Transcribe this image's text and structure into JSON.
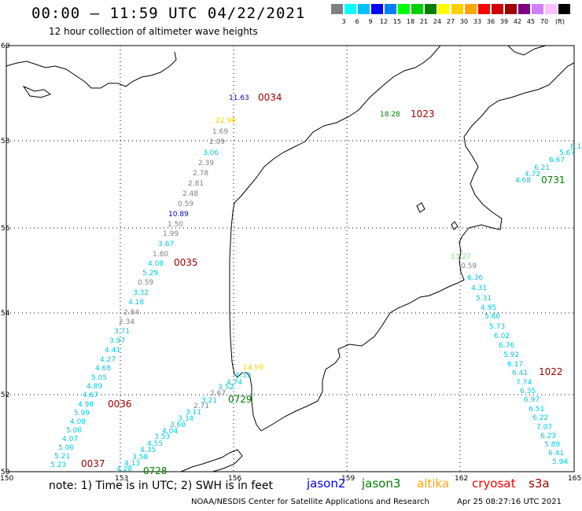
{
  "title": "00:00 – 11:59 UTC 04/22/2021",
  "subtitle": "12 hour collection of altimeter wave heights",
  "scale": {
    "colors": [
      "#808080",
      "#00ffff",
      "#00bfff",
      "#0000ff",
      "#0080ff",
      "#00ff00",
      "#00d000",
      "#008000",
      "#ffff00",
      "#ffd000",
      "#ffa500",
      "#ff0000",
      "#d00000",
      "#a00000",
      "#800080",
      "#d080ff",
      "#ffc0ff",
      "#000000"
    ],
    "labels": [
      "3",
      "6",
      "9",
      "12",
      "15",
      "18",
      "21",
      "24",
      "27",
      "30",
      "33",
      "36",
      "39",
      "42",
      "45",
      "70",
      "(ft)"
    ]
  },
  "axes": {
    "x_ticks": [
      "150",
      "153",
      "156",
      "159",
      "162",
      "165"
    ],
    "y_ticks": [
      "60",
      "58",
      "56",
      "54",
      "52",
      "50"
    ]
  },
  "passes": [
    "0034",
    "1023",
    "0035",
    "0036",
    "0037",
    "0728",
    "0729",
    "0731",
    "1022"
  ],
  "points": [
    {
      "v": "11.63",
      "c": "#0000c0"
    },
    {
      "v": "18.28",
      "c": "#008000"
    },
    {
      "v": "22.90",
      "c": "#ffd000"
    },
    {
      "v": "1.69",
      "c": "#808080"
    },
    {
      "v": "2.09",
      "c": "#808080"
    },
    {
      "v": "3.06",
      "c": "#00c8e0"
    },
    {
      "v": "2.39",
      "c": "#808080"
    },
    {
      "v": "2.78",
      "c": "#808080"
    },
    {
      "v": "2.81",
      "c": "#808080"
    },
    {
      "v": "2.48",
      "c": "#808080"
    },
    {
      "v": "0.59",
      "c": "#808080"
    },
    {
      "v": "10.89",
      "c": "#0000c0"
    },
    {
      "v": "1.50",
      "c": "#808080"
    },
    {
      "v": "1.99",
      "c": "#808080"
    },
    {
      "v": "3.67",
      "c": "#00c8e0"
    },
    {
      "v": "1.80",
      "c": "#808080"
    },
    {
      "v": "4.08",
      "c": "#00c8e0"
    },
    {
      "v": "5.29",
      "c": "#00c8e0"
    },
    {
      "v": "0.59",
      "c": "#808080"
    },
    {
      "v": "3.32",
      "c": "#00c8e0"
    },
    {
      "v": "4.10",
      "c": "#00c8e0"
    },
    {
      "v": "2.84",
      "c": "#808080"
    },
    {
      "v": "2.34",
      "c": "#808080"
    },
    {
      "v": "3.71",
      "c": "#00c8e0"
    },
    {
      "v": "3.97",
      "c": "#00c8e0"
    },
    {
      "v": "4.41",
      "c": "#00c8e0"
    },
    {
      "v": "4.27",
      "c": "#00c8e0"
    },
    {
      "v": "4.68",
      "c": "#00c8e0"
    },
    {
      "v": "5.05",
      "c": "#00c8e0"
    },
    {
      "v": "4.89",
      "c": "#00c8e0"
    },
    {
      "v": "4.67",
      "c": "#00c8e0"
    },
    {
      "v": "4.98",
      "c": "#00c8e0"
    },
    {
      "v": "5.99",
      "c": "#00c8e0"
    },
    {
      "v": "4.08",
      "c": "#00c8e0"
    },
    {
      "v": "5.00",
      "c": "#00c8e0"
    },
    {
      "v": "4.07",
      "c": "#00c8e0"
    },
    {
      "v": "5.00",
      "c": "#00c8e0"
    },
    {
      "v": "5.21",
      "c": "#00c8e0"
    },
    {
      "v": "5.23",
      "c": "#00c8e0"
    },
    {
      "v": "14.98",
      "c": "#ffd000"
    },
    {
      "v": "4.39",
      "c": "#00c8e0"
    },
    {
      "v": "4.74",
      "c": "#00c8e0"
    },
    {
      "v": "3.52",
      "c": "#00c8e0"
    },
    {
      "v": "2.67",
      "c": "#808080"
    },
    {
      "v": "3.21",
      "c": "#00c8e0"
    },
    {
      "v": "2.71",
      "c": "#808080"
    },
    {
      "v": "3.11",
      "c": "#00c8e0"
    },
    {
      "v": "3.34",
      "c": "#00c8e0"
    },
    {
      "v": "3.60",
      "c": "#00c8e0"
    },
    {
      "v": "4.04",
      "c": "#00c8e0"
    },
    {
      "v": "3.53",
      "c": "#00c8e0"
    },
    {
      "v": "4.55",
      "c": "#00c8e0"
    },
    {
      "v": "4.35",
      "c": "#00c8e0"
    },
    {
      "v": "3.58",
      "c": "#00c8e0"
    },
    {
      "v": "4.13",
      "c": "#00c8e0"
    },
    {
      "v": "4.28",
      "c": "#00c8e0"
    },
    {
      "v": "13.27",
      "c": "#80e080"
    },
    {
      "v": "0.59",
      "c": "#808080"
    },
    {
      "v": "6.36",
      "c": "#00c8e0"
    },
    {
      "v": "4.31",
      "c": "#00c8e0"
    },
    {
      "v": "5.31",
      "c": "#00c8e0"
    },
    {
      "v": "4.95",
      "c": "#00c8e0"
    },
    {
      "v": "5.60",
      "c": "#00c8e0"
    },
    {
      "v": "5.73",
      "c": "#00c8e0"
    },
    {
      "v": "6.02",
      "c": "#00c8e0"
    },
    {
      "v": "6.76",
      "c": "#00c8e0"
    },
    {
      "v": "5.92",
      "c": "#00c8e0"
    },
    {
      "v": "6.17",
      "c": "#00c8e0"
    },
    {
      "v": "6.41",
      "c": "#00c8e0"
    },
    {
      "v": "7.74",
      "c": "#00c8e0"
    },
    {
      "v": "6.35",
      "c": "#00c8e0"
    },
    {
      "v": "6.97",
      "c": "#00c8e0"
    },
    {
      "v": "6.51",
      "c": "#00c8e0"
    },
    {
      "v": "6.22",
      "c": "#00c8e0"
    },
    {
      "v": "7.07",
      "c": "#00c8e0"
    },
    {
      "v": "6.23",
      "c": "#00c8e0"
    },
    {
      "v": "5.89",
      "c": "#00c8e0"
    },
    {
      "v": "6.41",
      "c": "#00c8e0"
    },
    {
      "v": "5.94",
      "c": "#00c8e0"
    },
    {
      "v": "8.1",
      "c": "#00c8e0"
    },
    {
      "v": "5.67",
      "c": "#00c8e0"
    },
    {
      "v": "6.67",
      "c": "#00c8e0"
    },
    {
      "v": "6.21",
      "c": "#00c8e0"
    },
    {
      "v": "4.72",
      "c": "#00c8e0"
    },
    {
      "v": "4.68",
      "c": "#00c8e0"
    }
  ],
  "footnote": "note: 1) Time is in UTC; 2) SWH is in feet",
  "legend": [
    {
      "label": "jason2",
      "color": "#0000ff"
    },
    {
      "label": "jason3",
      "color": "#008000"
    },
    {
      "label": "altika",
      "color": "#ffa500"
    },
    {
      "label": "cryosat",
      "color": "#ff0000"
    },
    {
      "label": "s3a",
      "color": "#a00000"
    }
  ],
  "credit": "NOAA/NESDIS Center for Satellite Applications and Research",
  "credit_date": "Apr 25 08:27:16 UTC 2021"
}
